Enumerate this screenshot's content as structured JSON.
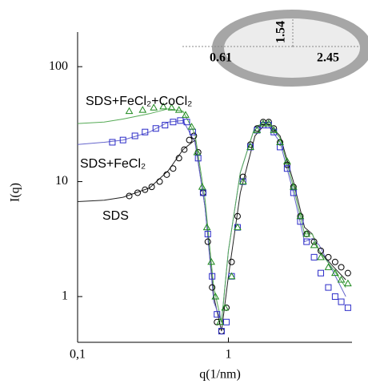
{
  "chart_data": {
    "type": "scatter",
    "xlabel": "q(1/nm)",
    "ylabel": "I(q)",
    "log_x": true,
    "log_y": true,
    "xlim": [
      0.1,
      6.6
    ],
    "ylim": [
      0.4,
      200
    ],
    "xticks": [
      {
        "value": 0.1,
        "label": "0,1"
      },
      1
    ],
    "yticks": [
      1,
      10,
      100
    ],
    "series": [
      {
        "name": "SDS",
        "color": "#000000",
        "marker": "circle",
        "x": [
          0.22,
          0.25,
          0.28,
          0.31,
          0.35,
          0.39,
          0.43,
          0.47,
          0.51,
          0.55,
          0.59,
          0.63,
          0.68,
          0.73,
          0.78,
          0.84,
          0.9,
          0.97,
          1.05,
          1.15,
          1.25,
          1.4,
          1.55,
          1.7,
          1.85,
          2.0,
          2.2,
          2.45,
          2.7,
          3.0,
          3.3,
          3.7,
          4.1,
          4.6,
          5.1,
          5.6,
          6.2
        ],
        "values": [
          7.5,
          8,
          8.5,
          9,
          10,
          11.5,
          13,
          16,
          19,
          23,
          25,
          18,
          8,
          3,
          1.2,
          0.6,
          0.5,
          0.8,
          2,
          5,
          11,
          21,
          29,
          33,
          33,
          29,
          22,
          14,
          9,
          5,
          3.5,
          3,
          2.5,
          2.2,
          2,
          1.8,
          1.6
        ]
      },
      {
        "name": "SDS+FeCl₂",
        "color": "#2b2bc8",
        "marker": "square",
        "x": [
          0.17,
          0.2,
          0.24,
          0.28,
          0.33,
          0.38,
          0.43,
          0.48,
          0.53,
          0.58,
          0.63,
          0.68,
          0.73,
          0.78,
          0.84,
          0.9,
          0.97,
          1.05,
          1.15,
          1.25,
          1.4,
          1.55,
          1.7,
          1.85,
          2.0,
          2.2,
          2.45,
          2.7,
          3.0,
          3.3,
          3.7,
          4.1,
          4.6,
          5.1,
          5.6,
          6.2
        ],
        "values": [
          22,
          23,
          25,
          27,
          29,
          31,
          33,
          34,
          33,
          27,
          16,
          8,
          3.5,
          1.5,
          0.7,
          0.5,
          0.6,
          1.5,
          4,
          10,
          20,
          28,
          31,
          31,
          27,
          20,
          13,
          8,
          4.5,
          3,
          2.2,
          1.6,
          1.2,
          1.0,
          0.9,
          0.8
        ]
      },
      {
        "name": "SDS+FeCl₂+CoCl₂",
        "color": "#1f8a1f",
        "marker": "triangle",
        "x": [
          0.22,
          0.27,
          0.32,
          0.37,
          0.42,
          0.47,
          0.52,
          0.57,
          0.62,
          0.67,
          0.72,
          0.77,
          0.82,
          0.88,
          0.95,
          1.05,
          1.15,
          1.25,
          1.4,
          1.55,
          1.7,
          1.85,
          2.0,
          2.2,
          2.45,
          2.7,
          3.0,
          3.3,
          3.7,
          4.1,
          4.6,
          5.1,
          5.6,
          6.2
        ],
        "values": [
          41,
          42,
          44,
          45,
          44,
          42,
          38,
          30,
          18,
          9,
          4,
          2,
          1,
          0.6,
          0.8,
          1.5,
          4,
          10,
          20,
          28,
          32,
          32,
          28,
          22,
          15,
          9,
          5,
          3.5,
          2.8,
          2.2,
          1.8,
          1.6,
          1.4,
          1.3
        ]
      }
    ],
    "fits": [
      {
        "color": "#222222",
        "x": [
          0.1,
          0.15,
          0.2,
          0.3,
          0.4,
          0.5,
          0.6,
          0.7,
          0.8,
          0.9,
          1.0,
          1.2,
          1.5,
          1.8,
          2.2,
          2.7,
          3.2,
          3.6,
          4,
          5,
          6
        ],
        "values": [
          6.7,
          6.9,
          7.3,
          8.8,
          12.5,
          19,
          23,
          6,
          1,
          0.5,
          1.5,
          8,
          25,
          33,
          25,
          10,
          4,
          3.5,
          2.5,
          1.8,
          1.4
        ]
      },
      {
        "color": "#6666cc",
        "x": [
          0.1,
          0.15,
          0.2,
          0.3,
          0.4,
          0.5,
          0.6,
          0.7,
          0.8,
          0.9,
          1.0,
          1.2,
          1.5,
          1.8,
          2.2,
          2.7,
          3.2,
          3.6,
          4,
          5,
          6
        ],
        "values": [
          21,
          22,
          23,
          27,
          33,
          34,
          22,
          6,
          0.9,
          0.6,
          2.5,
          12,
          30,
          32,
          22,
          8,
          3,
          3.2,
          2.8,
          1.6,
          1.0
        ]
      },
      {
        "color": "#55aa55",
        "x": [
          0.1,
          0.15,
          0.2,
          0.3,
          0.4,
          0.5,
          0.6,
          0.7,
          0.8,
          0.9,
          1.0,
          1.2,
          1.5,
          1.8,
          2.2,
          2.7,
          3.2,
          3.6,
          4,
          5,
          6
        ],
        "values": [
          32,
          33,
          35,
          39,
          43,
          41,
          26,
          7,
          1.2,
          0.6,
          2.5,
          12,
          30,
          33,
          24,
          9,
          3.5,
          3.5,
          2.5,
          1.7,
          1.2
        ]
      }
    ],
    "inset": {
      "height": 1.54,
      "core": 0.61,
      "width": 2.45
    }
  }
}
